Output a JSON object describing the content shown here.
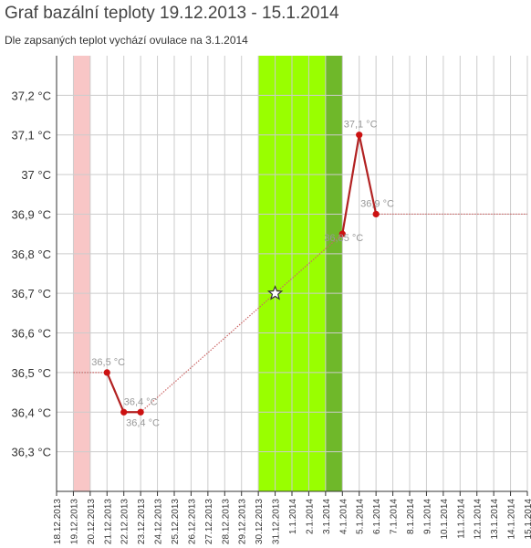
{
  "title": "Graf bazální teploty 19.12.2013 - 15.1.2014",
  "subtitle": "Dle zapsaných teplot vychází ovulace na 3.1.2014",
  "colors": {
    "menstruation": "#f8c6c6",
    "fertile": "#99ff00",
    "ovulation": "#6fb82a",
    "line": "#b22222",
    "point": "#cc1111",
    "dotted": "#cc6666",
    "grid": "#cccccc",
    "label": "#999999"
  },
  "chart_data": {
    "type": "line",
    "title": "Graf bazální teploty 19.12.2013 - 15.1.2014",
    "subtitle": "Dle zapsaných teplot vychází ovulace na 3.1.2014",
    "xlabel": "",
    "ylabel": "",
    "categories": [
      "18.12.2013",
      "19.12.2013",
      "20.12.2013",
      "21.12.2013",
      "22.12.2013",
      "23.12.2013",
      "24.12.2013",
      "25.12.2013",
      "26.12.2013",
      "27.12.2013",
      "28.12.2013",
      "29.12.2013",
      "30.12.2013",
      "31.12.2013",
      "1.1.2014",
      "2.1.2014",
      "3.1.2014",
      "4.1.2014",
      "5.1.2014",
      "6.1.2014",
      "7.1.2014",
      "8.1.2014",
      "9.1.2014",
      "10.1.2014",
      "11.1.2014",
      "12.1.2014",
      "13.1.2014",
      "14.1.2014",
      "15.1.2014"
    ],
    "yticks": [
      {
        "value": 36.3,
        "label": "36,3 °C"
      },
      {
        "value": 36.4,
        "label": "36,4 °C"
      },
      {
        "value": 36.5,
        "label": "36,5 °C"
      },
      {
        "value": 36.6,
        "label": "36,6 °C"
      },
      {
        "value": 36.7,
        "label": "36,7 °C"
      },
      {
        "value": 36.8,
        "label": "36,8 °C"
      },
      {
        "value": 36.9,
        "label": "36,9 °C"
      },
      {
        "value": 37.0,
        "label": "37 °C"
      },
      {
        "value": 37.1,
        "label": "37,1 °C"
      },
      {
        "value": 37.2,
        "label": "37,2 °C"
      }
    ],
    "ylim": [
      36.2,
      37.3
    ],
    "grid": true,
    "bands": [
      {
        "kind": "menstruation",
        "from": "19.12.2013",
        "to": "20.12.2013"
      },
      {
        "kind": "fertile",
        "from": "30.12.2013",
        "to": "4.1.2014"
      },
      {
        "kind": "ovulation",
        "from": "3.1.2014",
        "to": "4.1.2014"
      }
    ],
    "series": [
      {
        "points": [
          {
            "x": "21.12.2013",
            "y": 36.5,
            "label": "36,5 °C"
          },
          {
            "x": "22.12.2013",
            "y": 36.4,
            "label": "36,4 °C"
          },
          {
            "x": "23.12.2013",
            "y": 36.4,
            "label": "36,4 °C"
          },
          {
            "x": "4.1.2014",
            "y": 36.85,
            "label": "36,85 °C"
          },
          {
            "x": "5.1.2014",
            "y": 37.1,
            "label": "37,1 °C"
          },
          {
            "x": "6.1.2014",
            "y": 36.9,
            "label": "36,9 °C"
          }
        ]
      }
    ],
    "marker": {
      "x": "31.12.2013",
      "y": 36.7,
      "symbol": "star"
    },
    "dotted_lines": [
      {
        "from": {
          "x": "19.12.2013",
          "y": 36.5
        },
        "to": {
          "x": "21.12.2013",
          "y": 36.5
        }
      },
      {
        "from": {
          "x": "23.12.2013",
          "y": 36.4
        },
        "to": {
          "x": "4.1.2014",
          "y": 36.85
        }
      },
      {
        "from": {
          "x": "6.1.2014",
          "y": 36.9
        },
        "to": {
          "x": "15.1.2014",
          "y": 36.9
        }
      }
    ]
  }
}
